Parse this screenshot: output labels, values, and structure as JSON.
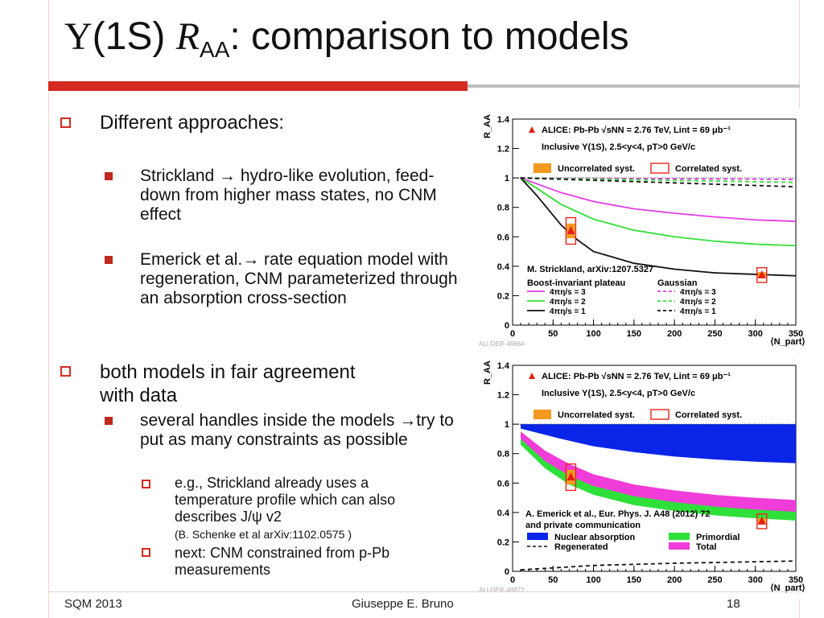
{
  "slide": {
    "title_symbol": "Υ",
    "title_part1": "(1S) ",
    "title_R": "R",
    "title_sub": "AA",
    "title_part2": ": comparison to models",
    "bullets": {
      "b1": "Different approaches:",
      "b1a": "Strickland → hydro-like evolution, feed-down from higher mass states, no CNM effect",
      "b1b": "Emerick et al.→ rate equation model with regeneration, CNM parameterized through an absorption cross-section",
      "b2": "both models in fair agreement with data",
      "b2a": "several handles inside the models →try to put as many constraints as possible",
      "b2a1": "e.g., Strickland already uses a temperature profile which can also describes J/ψ v2",
      "b2a1_ref": "(B. Schenke et al arXiv:1102.0575 )",
      "b2a2": "next: CNM constrained from p-Pb measurements"
    },
    "footer": {
      "left": "SQM 2013",
      "center": "Giuseppe E. Bruno",
      "right": "18"
    }
  },
  "chart_data": [
    {
      "type": "line",
      "ylabel": "R_AA",
      "xlabel": "⟨N_part⟩",
      "xlim": [
        0,
        350
      ],
      "ylim": [
        0,
        1.4
      ],
      "x_ticks": [
        0,
        50,
        100,
        150,
        200,
        250,
        300,
        350
      ],
      "y_ticks": [
        0,
        0.2,
        0.4,
        0.6,
        0.8,
        1,
        1.2,
        1.4
      ],
      "header1": "ALICE: Pb-Pb √sNN = 2.76 TeV, Lint = 69 μb⁻¹",
      "header2": "Inclusive Υ(1S), 2.5<y<4, pT>0 GeV/c",
      "legend_unc": "Uncorrelated syst.",
      "legend_cor": "Correlated syst.",
      "model_ref": "M. Strickland, arXiv:1207.5327",
      "group_left": "Boost-invariant plateau",
      "group_right": "Gaussian",
      "watermark": "ALI-DER-48864",
      "data_points": [
        {
          "x": 72,
          "y": 0.64,
          "stat": 0.05,
          "corr": 0.09
        },
        {
          "x": 308,
          "y": 0.34,
          "stat": 0.02,
          "corr": 0.05
        }
      ],
      "series": [
        {
          "name": "4πη/s = 3",
          "style": "solid",
          "color": "#e23ce6",
          "group": "left",
          "x": [
            10,
            30,
            60,
            100,
            150,
            200,
            250,
            300,
            350
          ],
          "y": [
            1.0,
            0.96,
            0.9,
            0.84,
            0.79,
            0.76,
            0.735,
            0.715,
            0.705
          ]
        },
        {
          "name": "4πη/s = 2",
          "style": "solid",
          "color": "#33e03a",
          "group": "left",
          "x": [
            10,
            30,
            60,
            100,
            150,
            200,
            250,
            300,
            350
          ],
          "y": [
            1.0,
            0.93,
            0.82,
            0.72,
            0.645,
            0.6,
            0.57,
            0.55,
            0.54
          ]
        },
        {
          "name": "4πη/s = 1",
          "style": "solid",
          "color": "#111111",
          "group": "left",
          "x": [
            10,
            30,
            60,
            80,
            100,
            150,
            200,
            250,
            300,
            350
          ],
          "y": [
            1.0,
            0.88,
            0.68,
            0.58,
            0.5,
            0.42,
            0.38,
            0.355,
            0.345,
            0.335
          ]
        },
        {
          "name": "4πη/s = 3",
          "style": "dashed",
          "color": "#e23ce6",
          "group": "right",
          "x": [
            10,
            350
          ],
          "y": [
            1.0,
            0.99
          ]
        },
        {
          "name": "4πη/s = 2",
          "style": "dashed",
          "color": "#33e03a",
          "group": "right",
          "x": [
            10,
            350
          ],
          "y": [
            1.0,
            0.97
          ]
        },
        {
          "name": "4πη/s = 1",
          "style": "dashed",
          "color": "#111111",
          "group": "right",
          "x": [
            10,
            350
          ],
          "y": [
            1.0,
            0.94
          ]
        }
      ]
    },
    {
      "type": "area",
      "ylabel": "R_AA",
      "xlabel": "⟨N_part⟩",
      "xlim": [
        0,
        350
      ],
      "ylim": [
        0,
        1.4
      ],
      "x_ticks": [
        0,
        50,
        100,
        150,
        200,
        250,
        300,
        350
      ],
      "y_ticks": [
        0,
        0.2,
        0.4,
        0.6,
        0.8,
        1,
        1.2,
        1.4
      ],
      "header1": "ALICE: Pb-Pb √sNN = 2.76 TeV, Lint = 69 μb⁻¹",
      "header2": "Inclusive Υ(1S), 2.5<y<4, pT>0 GeV/c",
      "legend_unc": "Uncorrelated syst.",
      "legend_cor": "Correlated syst.",
      "model_ref": "A. Emerick et al., Eur. Phys. J. A48 (2012) 72",
      "model_ref2": "and private communication",
      "watermark": "ALI-DER-48872",
      "data_points": [
        {
          "x": 72,
          "y": 0.64,
          "stat": 0.05,
          "corr": 0.09
        },
        {
          "x": 308,
          "y": 0.34,
          "stat": 0.02,
          "corr": 0.05
        }
      ],
      "bands": [
        {
          "name": "Nuclear absorption",
          "color": "#0a24e8",
          "x": [
            10,
            60,
            100,
            150,
            200,
            250,
            300,
            350
          ],
          "lo": [
            0.97,
            0.9,
            0.85,
            0.81,
            0.78,
            0.76,
            0.745,
            0.735
          ],
          "hi": [
            1.0,
            1.0,
            1.0,
            1.0,
            1.0,
            1.0,
            1.0,
            1.0
          ]
        },
        {
          "name": "Primordial",
          "color": "#2fe03a",
          "x": [
            10,
            40,
            70,
            100,
            150,
            200,
            250,
            300,
            350
          ],
          "lo": [
            0.86,
            0.7,
            0.59,
            0.52,
            0.45,
            0.41,
            0.38,
            0.36,
            0.345
          ],
          "hi": [
            0.9,
            0.76,
            0.66,
            0.59,
            0.52,
            0.48,
            0.45,
            0.43,
            0.415
          ]
        },
        {
          "name": "Total",
          "color": "#f03cd8",
          "x": [
            10,
            40,
            70,
            100,
            150,
            200,
            250,
            300,
            350
          ],
          "lo": [
            0.9,
            0.75,
            0.65,
            0.58,
            0.51,
            0.47,
            0.44,
            0.42,
            0.405
          ],
          "hi": [
            0.95,
            0.82,
            0.73,
            0.66,
            0.59,
            0.55,
            0.52,
            0.5,
            0.485
          ]
        }
      ],
      "series": [
        {
          "name": "Regenerated",
          "style": "dashed",
          "color": "#111111",
          "x": [
            10,
            100,
            200,
            300,
            350
          ],
          "y": [
            0.01,
            0.04,
            0.055,
            0.065,
            0.07
          ]
        }
      ]
    }
  ]
}
